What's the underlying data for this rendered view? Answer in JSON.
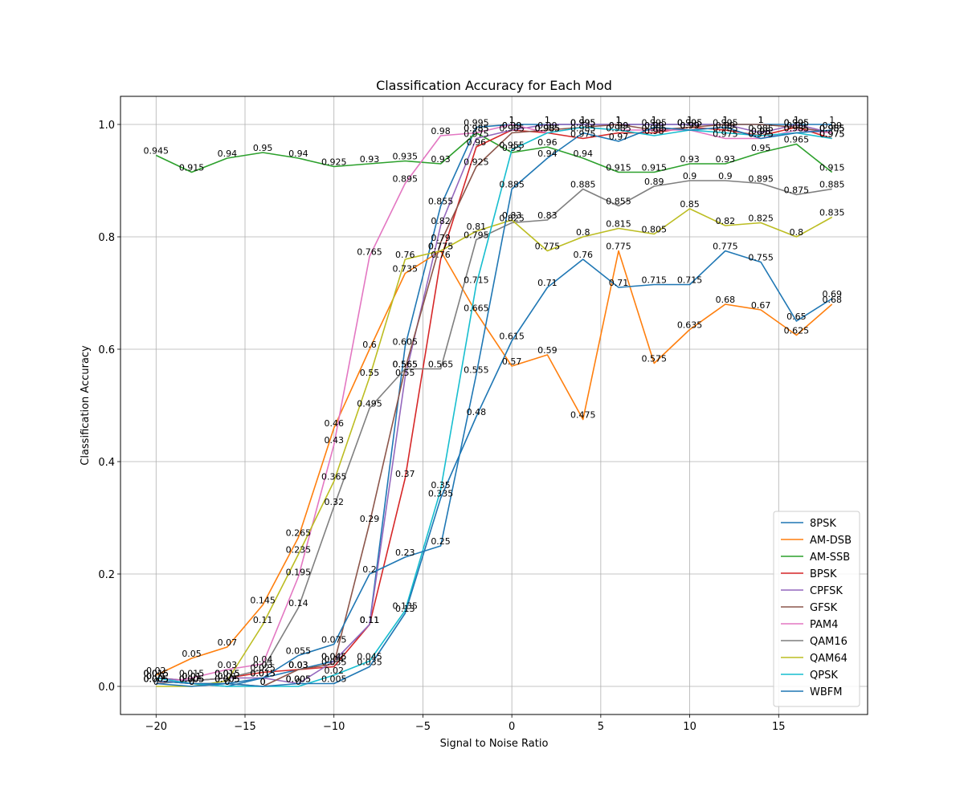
{
  "chart_data": {
    "type": "line",
    "title": "Classification Accuracy for Each Mod",
    "xlabel": "Signal to Noise Ratio",
    "ylabel": "Classification Accuracy",
    "xlim": [
      -22,
      20
    ],
    "ylim": [
      -0.05,
      1.05
    ],
    "xticks": [
      -20,
      -15,
      -10,
      -5,
      0,
      5,
      10,
      15
    ],
    "yticks": [
      0.0,
      0.2,
      0.4,
      0.6,
      0.8,
      1.0
    ],
    "grid": true,
    "legend_position": "lower-right",
    "x": [
      -20,
      -18,
      -16,
      -14,
      -12,
      -10,
      -8,
      -6,
      -4,
      -2,
      0,
      2,
      4,
      6,
      8,
      10,
      12,
      14,
      16,
      18
    ],
    "series": [
      {
        "name": "8PSK",
        "color": "#1f77b4",
        "values": [
          0.01,
          0.005,
          0.0,
          0.015,
          0.03,
          0.045,
          0.11,
          0.605,
          0.855,
          0.995,
          1.0,
          1.0,
          1.0,
          1.0,
          1.0,
          1.0,
          1.0,
          1.0,
          1.0,
          1.0
        ]
      },
      {
        "name": "AM-DSB",
        "color": "#ff7f0e",
        "values": [
          0.02,
          0.05,
          0.07,
          0.145,
          0.265,
          0.46,
          0.6,
          0.735,
          0.775,
          0.665,
          0.57,
          0.59,
          0.475,
          0.775,
          0.575,
          0.635,
          0.68,
          0.67,
          0.625,
          0.68
        ]
      },
      {
        "name": "AM-SSB",
        "color": "#2ca02c",
        "values": [
          0.945,
          0.915,
          0.94,
          0.95,
          0.94,
          0.925,
          0.93,
          0.935,
          0.93,
          0.985,
          0.95,
          0.96,
          0.94,
          0.915,
          0.915,
          0.93,
          0.93,
          0.95,
          0.965,
          0.915
        ]
      },
      {
        "name": "BPSK",
        "color": "#d62728",
        "values": [
          0.015,
          0.01,
          0.015,
          0.025,
          0.03,
          0.035,
          0.11,
          0.37,
          0.76,
          0.96,
          0.99,
          0.985,
          0.975,
          0.985,
          0.985,
          0.995,
          0.99,
          0.98,
          0.995,
          0.975
        ]
      },
      {
        "name": "CPFSK",
        "color": "#9467bd",
        "values": [
          0.015,
          0.01,
          0.015,
          0.015,
          0.005,
          0.045,
          0.11,
          0.55,
          0.82,
          0.975,
          0.99,
          1.0,
          1.0,
          1.0,
          1.0,
          1.0,
          1.0,
          0.985,
          1.0,
          0.985
        ]
      },
      {
        "name": "GFSK",
        "color": "#8c564b",
        "values": [
          0.01,
          0.005,
          0.005,
          0.0,
          0.03,
          0.04,
          0.29,
          0.565,
          0.79,
          0.925,
          0.985,
          0.99,
          0.995,
          1.0,
          0.99,
          0.995,
          1.0,
          1.0,
          0.995,
          0.985
        ]
      },
      {
        "name": "PAM4",
        "color": "#e377c2",
        "values": [
          0.005,
          0.015,
          0.03,
          0.04,
          0.195,
          0.43,
          0.765,
          0.895,
          0.98,
          0.985,
          1.0,
          0.985,
          0.995,
          0.99,
          0.99,
          0.99,
          0.975,
          0.975,
          0.99,
          0.985
        ]
      },
      {
        "name": "QAM16",
        "color": "#7f7f7f",
        "values": [
          0.005,
          0.01,
          0.015,
          0.03,
          0.14,
          0.32,
          0.495,
          0.565,
          0.565,
          0.795,
          0.825,
          0.83,
          0.885,
          0.855,
          0.89,
          0.9,
          0.9,
          0.895,
          0.875,
          0.885
        ]
      },
      {
        "name": "QAM64",
        "color": "#bcbd22",
        "values": [
          0.0,
          0.0,
          0.01,
          0.11,
          0.235,
          0.365,
          0.55,
          0.76,
          0.775,
          0.81,
          0.83,
          0.775,
          0.8,
          0.815,
          0.805,
          0.85,
          0.82,
          0.825,
          0.8,
          0.835
        ]
      },
      {
        "name": "QPSK",
        "color": "#17becf",
        "values": [
          0.015,
          0.005,
          0.0,
          0.0,
          0.0,
          0.02,
          0.045,
          0.135,
          0.35,
          0.715,
          0.955,
          0.985,
          0.995,
          0.99,
          0.98,
          0.99,
          0.985,
          0.98,
          0.985,
          0.975
        ]
      },
      {
        "name": "WBFM",
        "color": "#1f77b4",
        "values": [
          0.01,
          0.005,
          0.005,
          0.015,
          0.055,
          0.075,
          0.2,
          0.23,
          0.25,
          0.555,
          0.885,
          0.94,
          0.985,
          0.97,
          0.995,
          0.99,
          0.995,
          0.975,
          0.985,
          0.99
        ]
      },
      {
        "name": "",
        "color": "#1f77b4",
        "values": [
          0.005,
          0.0,
          0.005,
          0.0,
          0.005,
          0.005,
          0.035,
          0.13,
          0.335,
          0.48,
          0.615,
          0.71,
          0.76,
          0.71,
          0.715,
          0.715,
          0.775,
          0.755,
          0.65,
          0.69
        ]
      }
    ]
  }
}
